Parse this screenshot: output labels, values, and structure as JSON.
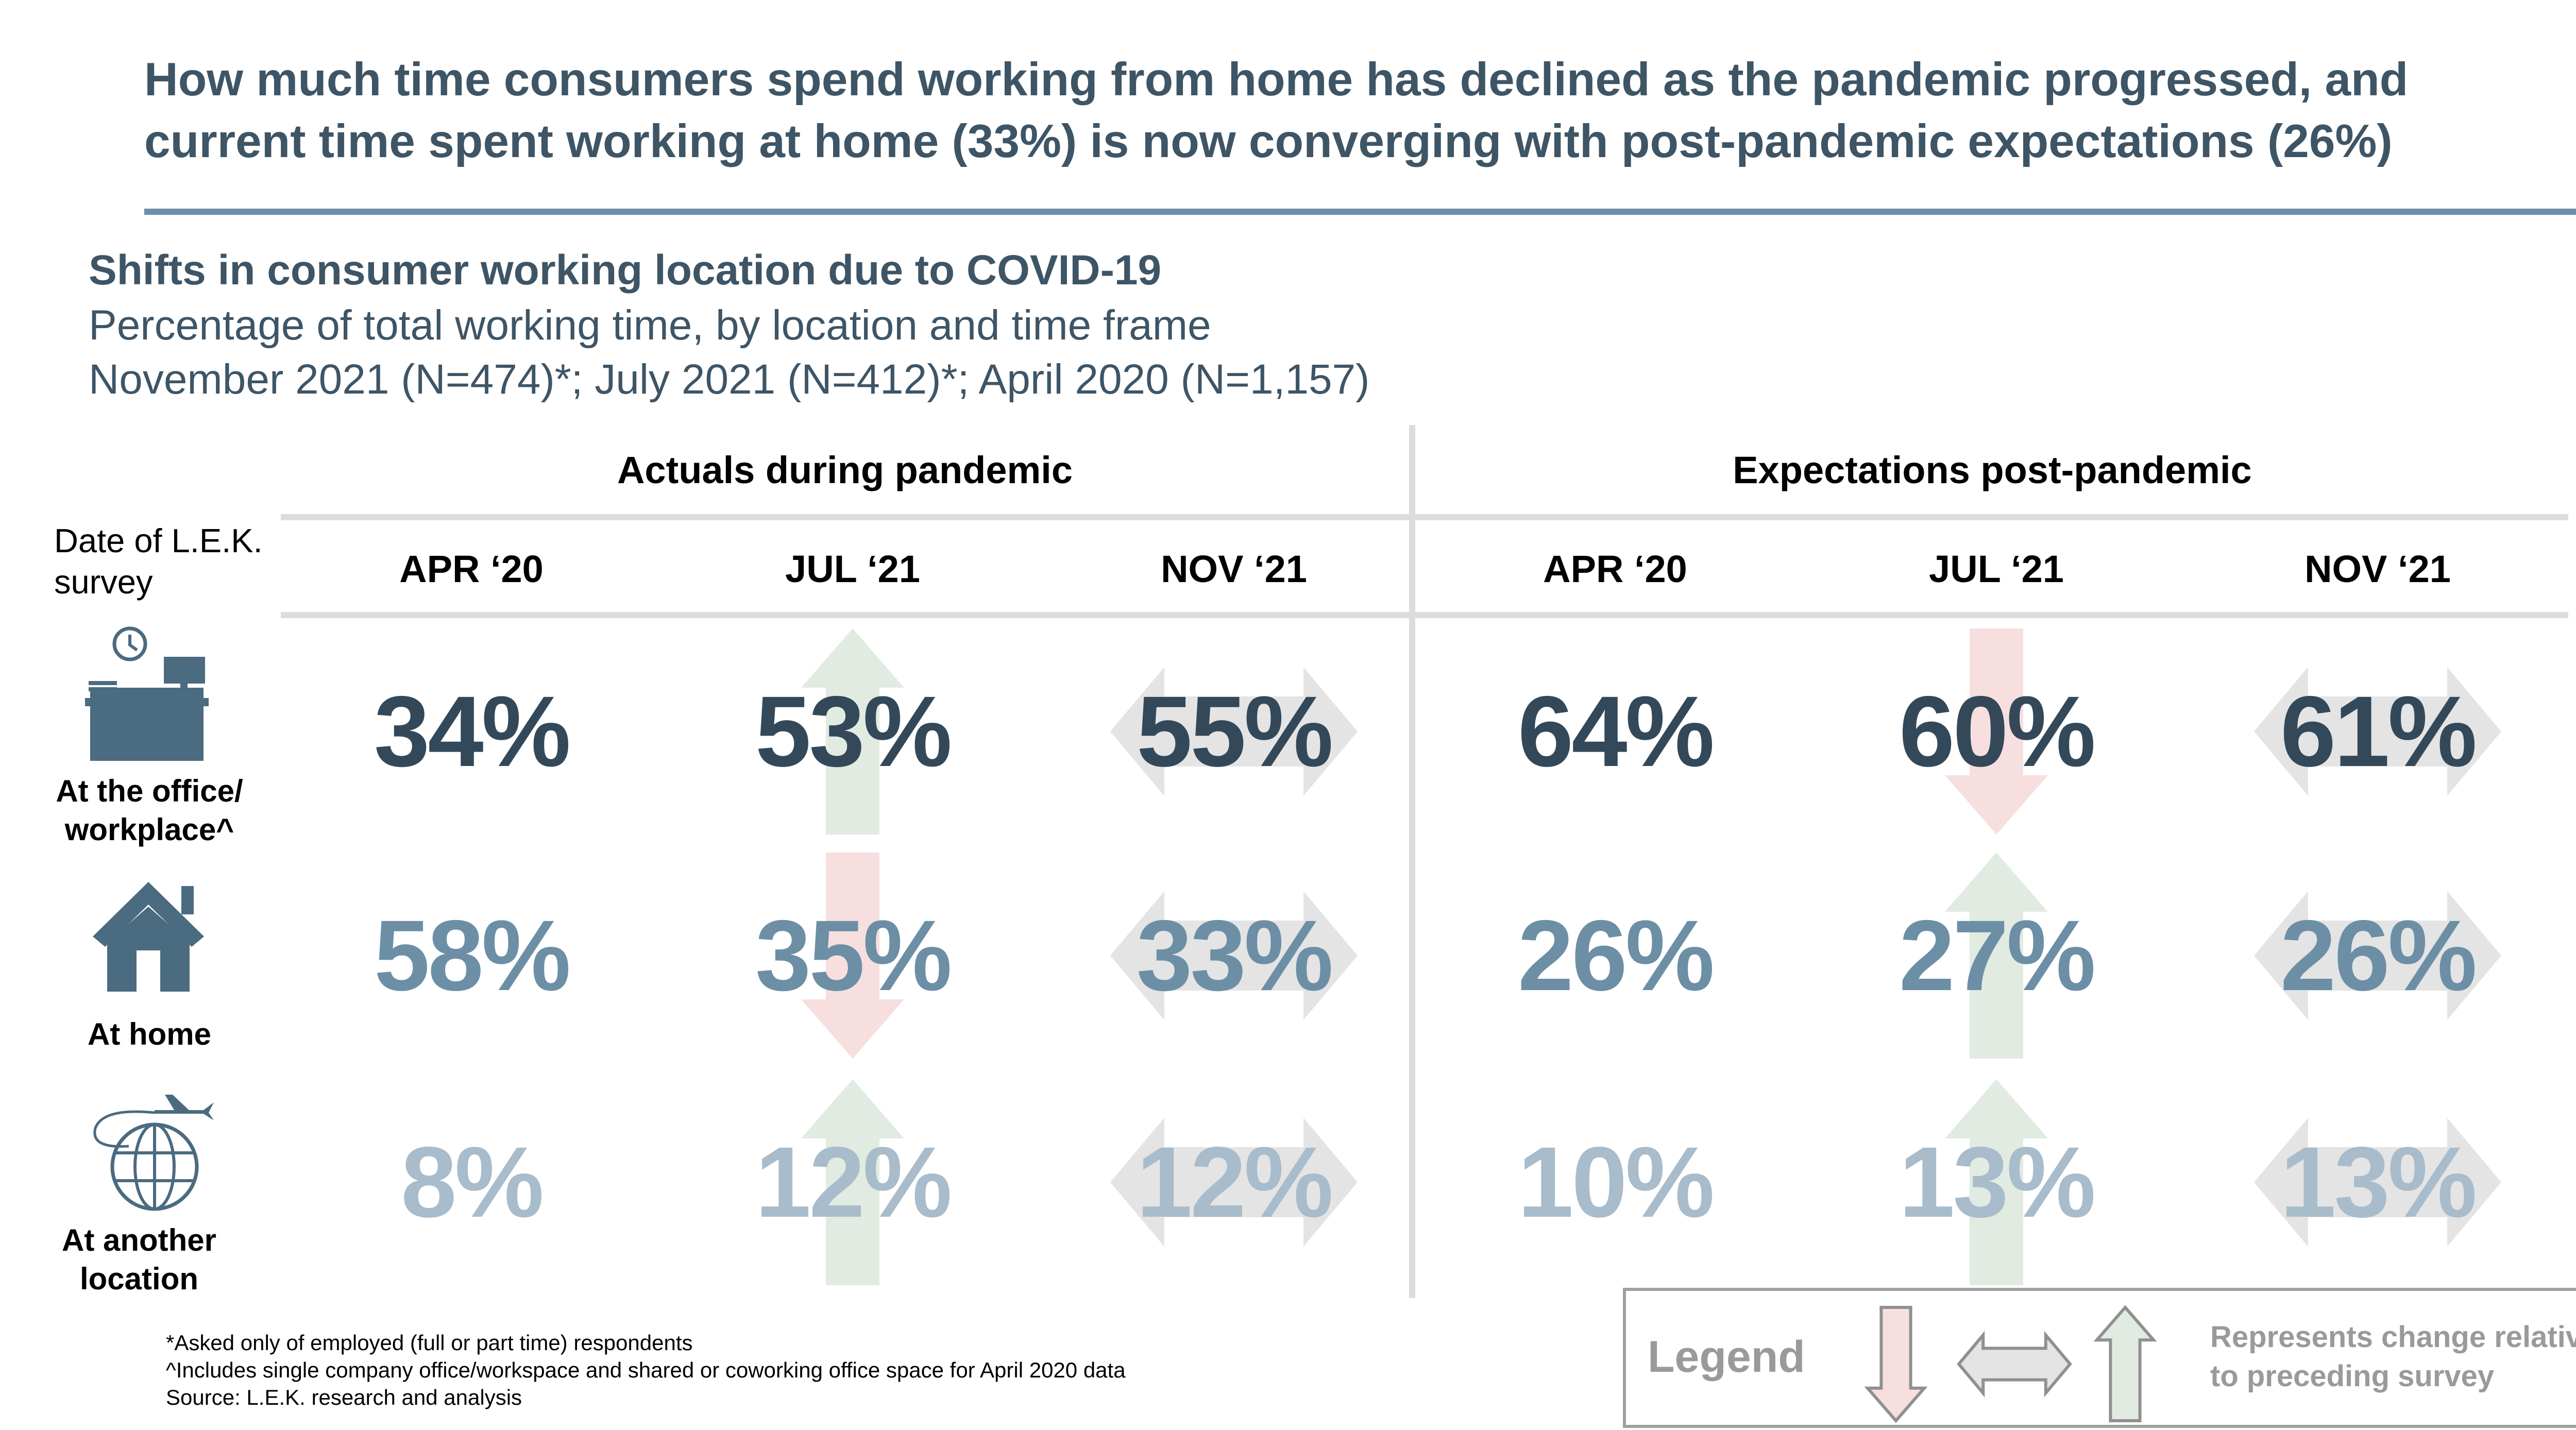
{
  "headline": {
    "line1": "How much time consumers spend working from home has declined as the pandemic progressed, and",
    "line2": "current time spent working at home (33%) is now converging with post-pandemic expectations (26%)"
  },
  "chart_title": "Shifts in consumer working location due to COVID-19",
  "subtitle_1": "Percentage of total working time, by location and time frame",
  "subtitle_2": "November 2021 (N=474)*; July 2021 (N=412)*; April 2020 (N=1,157)",
  "date_label": "Date of L.E.K. survey",
  "colors": {
    "dark": "#33495a",
    "mid": "#6c8fa6",
    "light": "#a8bccb",
    "up": "#e1ebe1",
    "down": "#f7dfdf",
    "flat": "#e4e4e4",
    "icon": "#4a6b80"
  },
  "chart_data": {
    "type": "table",
    "groups": [
      "Actuals during pandemic",
      "Expectations post-pandemic"
    ],
    "columns": [
      "APR ‘20",
      "JUL ‘21",
      "NOV ‘21",
      "APR ‘20",
      "JUL ‘21",
      "NOV ‘21"
    ],
    "rows": [
      {
        "label": "At the office/ workplace^",
        "icon": "office-desk-icon",
        "values": [
          "34%",
          "53%",
          "55%",
          "64%",
          "60%",
          "61%"
        ],
        "change": [
          null,
          "up",
          "flat",
          null,
          "down",
          "flat"
        ]
      },
      {
        "label": "At home",
        "icon": "house-icon",
        "values": [
          "58%",
          "35%",
          "33%",
          "26%",
          "27%",
          "26%"
        ],
        "change": [
          null,
          "down",
          "flat",
          null,
          "up",
          "flat"
        ]
      },
      {
        "label": "At another location",
        "icon": "globe-plane-icon",
        "values": [
          "8%",
          "12%",
          "12%",
          "10%",
          "13%",
          "13%"
        ],
        "change": [
          null,
          "up",
          "flat",
          null,
          "up",
          "flat"
        ]
      }
    ]
  },
  "footnotes": [
    "*Asked only of employed (full or part time) respondents",
    "^Includes single company office/workspace and shared or coworking office space for April 2020 data",
    "Source: L.E.K. research and analysis"
  ],
  "legend": {
    "title": "Legend",
    "items": [
      "down-arrow-icon",
      "both-arrow-icon",
      "up-arrow-icon"
    ],
    "description_line1": "Represents change relative",
    "description_line2": "to preceding survey"
  }
}
